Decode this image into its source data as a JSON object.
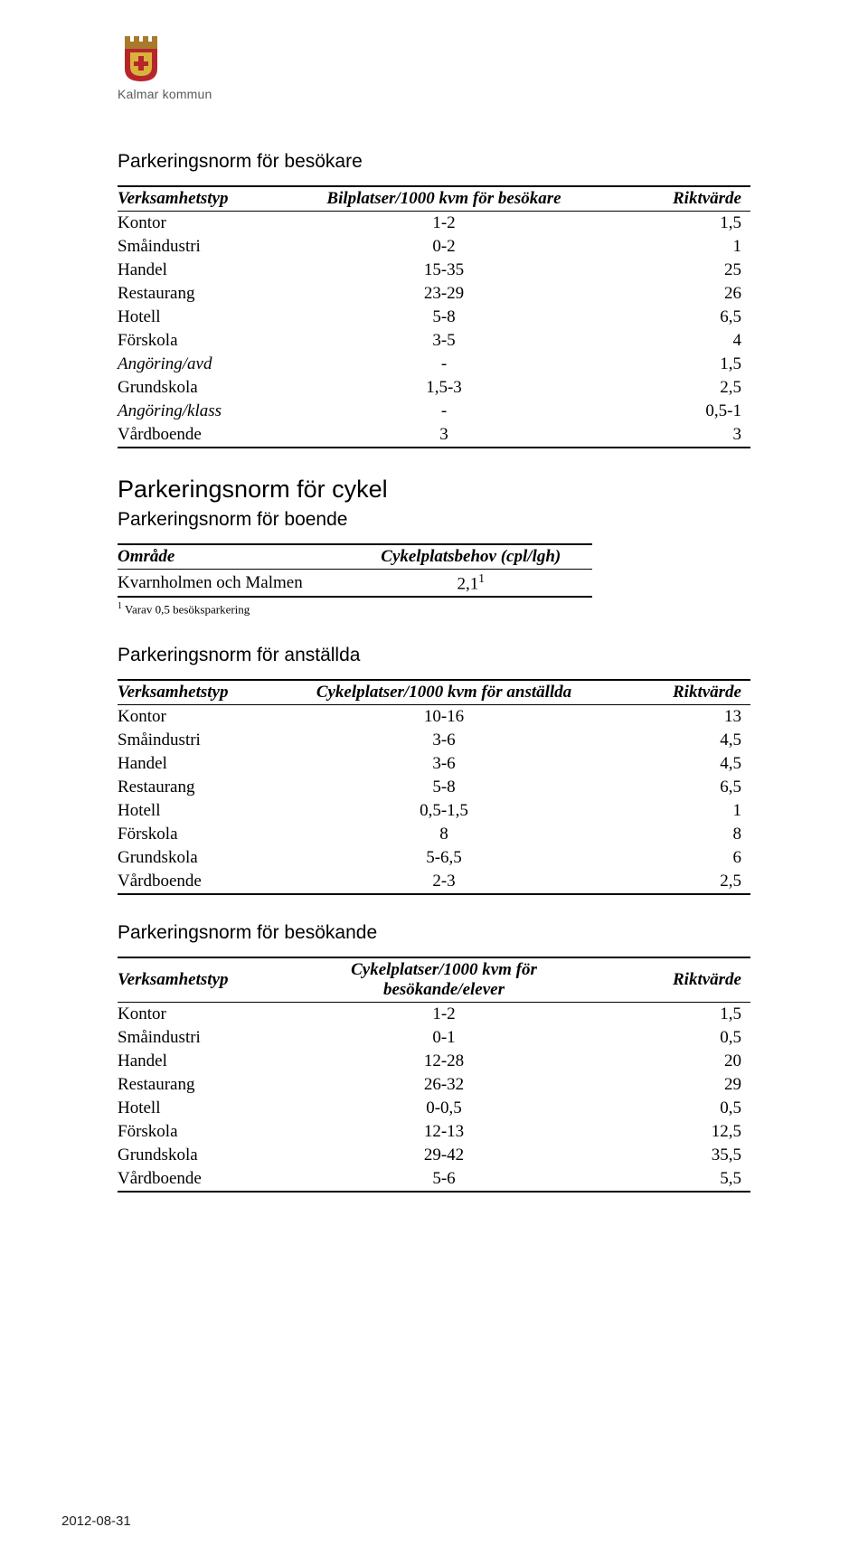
{
  "org": {
    "name": "Kalmar kommun"
  },
  "date": "2012-08-31",
  "section1": {
    "title": "Parkeringsnorm för besökare",
    "columns": [
      "Verksamhetstyp",
      "Bilplatser/1000 kvm för besökare",
      "Riktvärde"
    ],
    "rows": [
      {
        "type": "Kontor",
        "range": "1-2",
        "rikt": "1,5",
        "italic": false
      },
      {
        "type": "Småindustri",
        "range": "0-2",
        "rikt": "1",
        "italic": false
      },
      {
        "type": "Handel",
        "range": "15-35",
        "rikt": "25",
        "italic": false
      },
      {
        "type": "Restaurang",
        "range": "23-29",
        "rikt": "26",
        "italic": false
      },
      {
        "type": "Hotell",
        "range": "5-8",
        "rikt": "6,5",
        "italic": false
      },
      {
        "type": "Förskola",
        "range": "3-5",
        "rikt": "4",
        "italic": false
      },
      {
        "type": "Angöring/avd",
        "range": "-",
        "rikt": "1,5",
        "italic": true
      },
      {
        "type": "Grundskola",
        "range": "1,5-3",
        "rikt": "2,5",
        "italic": false
      },
      {
        "type": "Angöring/klass",
        "range": "-",
        "rikt": "0,5-1",
        "italic": true
      },
      {
        "type": "Vårdboende",
        "range": "3",
        "rikt": "3",
        "italic": false
      }
    ]
  },
  "section2": {
    "big_title": "Parkeringsnorm för cykel",
    "sub_title": "Parkeringsnorm för boende",
    "columns": [
      "Område",
      "Cykelplatsbehov (cpl/lgh)"
    ],
    "rows": [
      {
        "area": "Kvarnholmen och Malmen",
        "val": "2,1",
        "sup": "1"
      }
    ],
    "footnote_sup": "1",
    "footnote_text": " Varav 0,5 besöksparkering"
  },
  "section3": {
    "title": "Parkeringsnorm för anställda",
    "columns": [
      "Verksamhetstyp",
      "Cykelplatser/1000 kvm för anställda",
      "Riktvärde"
    ],
    "rows": [
      {
        "type": "Kontor",
        "range": "10-16",
        "rikt": "13"
      },
      {
        "type": "Småindustri",
        "range": "3-6",
        "rikt": "4,5"
      },
      {
        "type": "Handel",
        "range": "3-6",
        "rikt": "4,5"
      },
      {
        "type": "Restaurang",
        "range": "5-8",
        "rikt": "6,5"
      },
      {
        "type": "Hotell",
        "range": "0,5-1,5",
        "rikt": "1"
      },
      {
        "type": "Förskola",
        "range": "8",
        "rikt": "8"
      },
      {
        "type": "Grundskola",
        "range": "5-6,5",
        "rikt": "6"
      },
      {
        "type": "Vårdboende",
        "range": "2-3",
        "rikt": "2,5"
      }
    ]
  },
  "section4": {
    "title": "Parkeringsnorm för besökande",
    "columns": [
      "Verksamhetstyp",
      "Cykelplatser/1000 kvm för besökande/elever",
      "Riktvärde"
    ],
    "rows": [
      {
        "type": "Kontor",
        "range": "1-2",
        "rikt": "1,5"
      },
      {
        "type": "Småindustri",
        "range": "0-1",
        "rikt": "0,5"
      },
      {
        "type": "Handel",
        "range": "12-28",
        "rikt": "20"
      },
      {
        "type": "Restaurang",
        "range": "26-32",
        "rikt": "29"
      },
      {
        "type": "Hotell",
        "range": "0-0,5",
        "rikt": "0,5"
      },
      {
        "type": "Förskola",
        "range": "12-13",
        "rikt": "12,5"
      },
      {
        "type": "Grundskola",
        "range": "29-42",
        "rikt": "35,5"
      },
      {
        "type": "Vårdboende",
        "range": "5-6",
        "rikt": "5,5"
      }
    ]
  }
}
